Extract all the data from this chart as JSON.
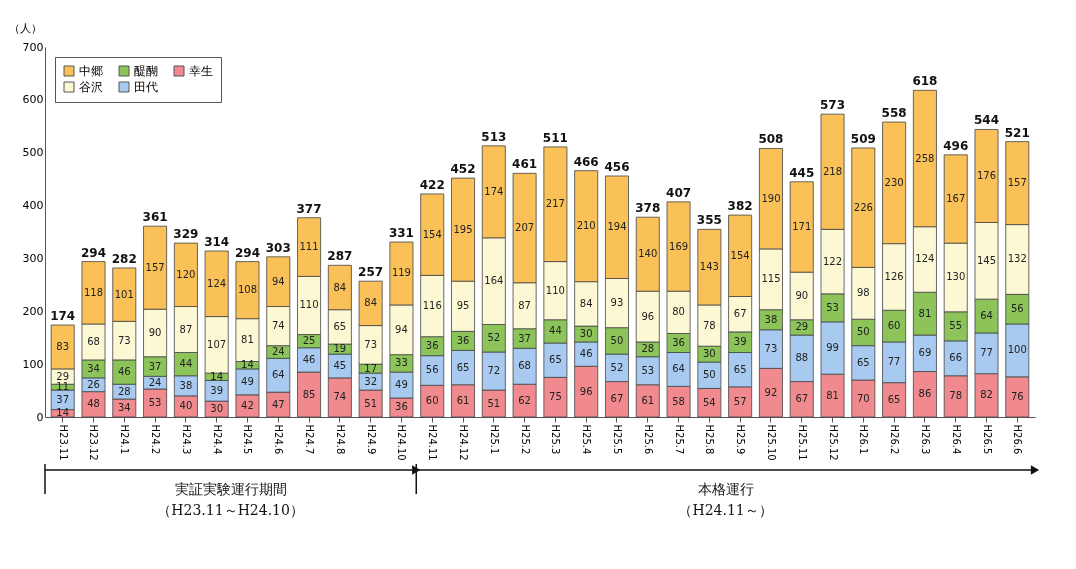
{
  "chart_data": {
    "type": "bar",
    "stacked": true,
    "ylabel": "（人）",
    "categories": [
      "H23.11",
      "H23.12",
      "H24.1",
      "H24.2",
      "H24.3",
      "H24.4",
      "H24.5",
      "H24.6",
      "H24.7",
      "H24.8",
      "H24.9",
      "H24.10",
      "H24.11",
      "H24.12",
      "H25.1",
      "H25.2",
      "H25.3",
      "H25.4",
      "H25.5",
      "H25.6",
      "H25.7",
      "H25.8",
      "H25.9",
      "H25.10",
      "H25.11",
      "H25.12",
      "H26.1",
      "H26.2",
      "H26.3",
      "H26.4",
      "H26.5",
      "H26.6"
    ],
    "series": [
      {
        "name": "幸生",
        "color": "#f08a8e",
        "values": [
          14,
          48,
          34,
          53,
          40,
          30,
          42,
          47,
          85,
          74,
          51,
          36,
          60,
          61,
          51,
          62,
          75,
          96,
          67,
          61,
          58,
          54,
          57,
          92,
          67,
          81,
          70,
          65,
          86,
          78,
          82,
          76
        ]
      },
      {
        "name": "田代",
        "color": "#a8caf0",
        "values": [
          37,
          26,
          28,
          24,
          38,
          39,
          49,
          64,
          46,
          45,
          32,
          49,
          56,
          65,
          72,
          68,
          65,
          46,
          52,
          53,
          64,
          50,
          65,
          73,
          88,
          99,
          65,
          77,
          69,
          66,
          77,
          100
        ]
      },
      {
        "name": "醍醐",
        "color": "#8cc45a",
        "values": [
          11,
          34,
          46,
          37,
          44,
          14,
          14,
          24,
          25,
          19,
          17,
          33,
          36,
          36,
          52,
          37,
          44,
          30,
          50,
          28,
          36,
          30,
          39,
          38,
          29,
          53,
          50,
          60,
          81,
          55,
          64,
          56
        ]
      },
      {
        "name": "谷沢",
        "color": "#fcf8d4",
        "values": [
          29,
          68,
          73,
          90,
          87,
          107,
          81,
          74,
          110,
          65,
          73,
          94,
          116,
          95,
          164,
          87,
          110,
          84,
          93,
          96,
          80,
          78,
          67,
          115,
          90,
          122,
          98,
          126,
          124,
          130,
          145,
          132
        ]
      },
      {
        "name": "中郷",
        "color": "#f9c158",
        "values": [
          83,
          118,
          101,
          157,
          120,
          124,
          108,
          94,
          111,
          84,
          84,
          119,
          154,
          195,
          174,
          207,
          217,
          210,
          194,
          140,
          169,
          143,
          154,
          190,
          171,
          218,
          226,
          230,
          258,
          167,
          176,
          157
        ]
      }
    ],
    "totals": [
      "174",
      "294",
      "282",
      "361",
      "329",
      "314",
      "294",
      "303",
      "377",
      "287",
      "257",
      "331",
      "422",
      "452",
      "513",
      "461",
      "511",
      "466",
      "456",
      "378",
      "407",
      "355",
      "382",
      "508",
      "445",
      "573",
      "509",
      "558",
      "618",
      "496",
      "544",
      "521"
    ],
    "data_labels": true,
    "ylim": [
      0,
      700
    ],
    "yticks": [
      0,
      100,
      200,
      300,
      400,
      500,
      600,
      700
    ],
    "grid": false,
    "legend": "top left",
    "annotations": [
      "実証実験運行期間",
      "（H23.11～H24.10）",
      "本格運行",
      "（H24.11～）"
    ]
  }
}
